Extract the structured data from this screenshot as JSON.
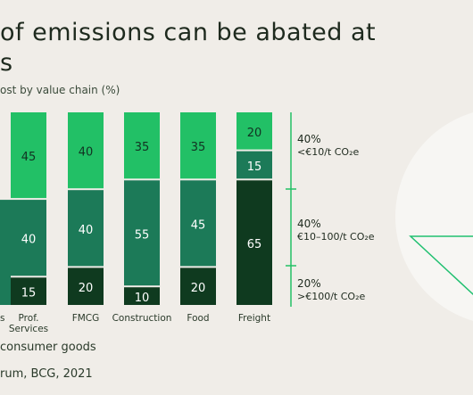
{
  "title_line1": "of emissions can be abated at",
  "title_line2": "s",
  "subtitle": "ost by value chain (%)",
  "legend_note": "consumer goods",
  "source": "rum, BCG, 2021",
  "colors": {
    "light": "#22c066",
    "mid": "#1c7a58",
    "dark": "#0f3a1f",
    "label_dark": "#123222",
    "label_light": "#ffffff",
    "pie_fill": "#f7f6f3",
    "pie_line": "#20c070",
    "divider": "#22c066"
  },
  "chart_data": {
    "type": "bar",
    "stacked": true,
    "categories": [
      "s",
      "Prof.\nServices",
      "FMCG",
      "Construction",
      "Food",
      "Freight"
    ],
    "series": [
      {
        "key": "low",
        "values": [
          null,
          15,
          20,
          10,
          20,
          65
        ]
      },
      {
        "key": "mid",
        "values": [
          null,
          40,
          40,
          55,
          45,
          15
        ]
      },
      {
        "key": "high",
        "values": [
          45,
          45,
          40,
          35,
          35,
          20
        ]
      }
    ],
    "ylim": [
      0,
      100
    ],
    "cost_bands": [
      {
        "key": "high",
        "pct": "40%",
        "label": "<€10/t CO₂e"
      },
      {
        "key": "mid",
        "pct": "40%",
        "label": "€10–100/t CO₂e"
      },
      {
        "key": "low",
        "pct": "20%",
        "label": ">€100/t CO₂e"
      }
    ]
  }
}
